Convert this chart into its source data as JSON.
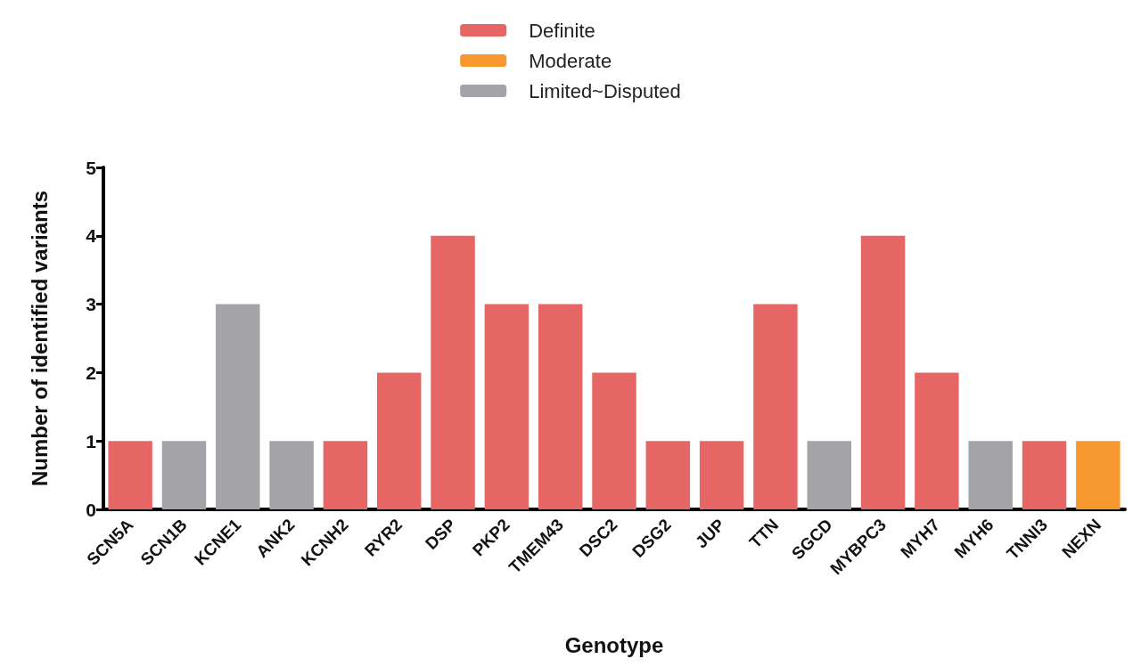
{
  "chart_data": {
    "type": "bar",
    "xlabel": "Genotype",
    "ylabel": "Number of identified variants",
    "categories": [
      "SCN5A",
      "SCN1B",
      "KCNE1",
      "ANK2",
      "KCNH2",
      "RYR2",
      "DSP",
      "PKP2",
      "TMEM43",
      "DSC2",
      "DSG2",
      "JUP",
      "TTN",
      "SGCD",
      "MYBPC3",
      "MYH7",
      "MYH6",
      "TNNI3",
      "NEXN"
    ],
    "series": [
      {
        "name": "Definite",
        "color": "#e66666",
        "values": [
          1,
          null,
          null,
          null,
          1,
          2,
          4,
          3,
          3,
          2,
          1,
          1,
          3,
          null,
          4,
          2,
          null,
          1,
          null
        ]
      },
      {
        "name": "Moderate",
        "color": "#f7982f",
        "values": [
          null,
          null,
          null,
          null,
          null,
          null,
          null,
          null,
          null,
          null,
          null,
          null,
          null,
          null,
          null,
          null,
          null,
          null,
          1
        ]
      },
      {
        "name": "Limited~Disputed",
        "color": "#a3a3a8",
        "values": [
          null,
          1,
          3,
          1,
          null,
          null,
          null,
          null,
          null,
          null,
          null,
          null,
          null,
          1,
          null,
          null,
          1,
          null,
          null
        ]
      }
    ],
    "ylim": [
      0,
      5
    ],
    "yticks": [
      0,
      1,
      2,
      3,
      4,
      5
    ],
    "grid": false,
    "legend": "top"
  }
}
